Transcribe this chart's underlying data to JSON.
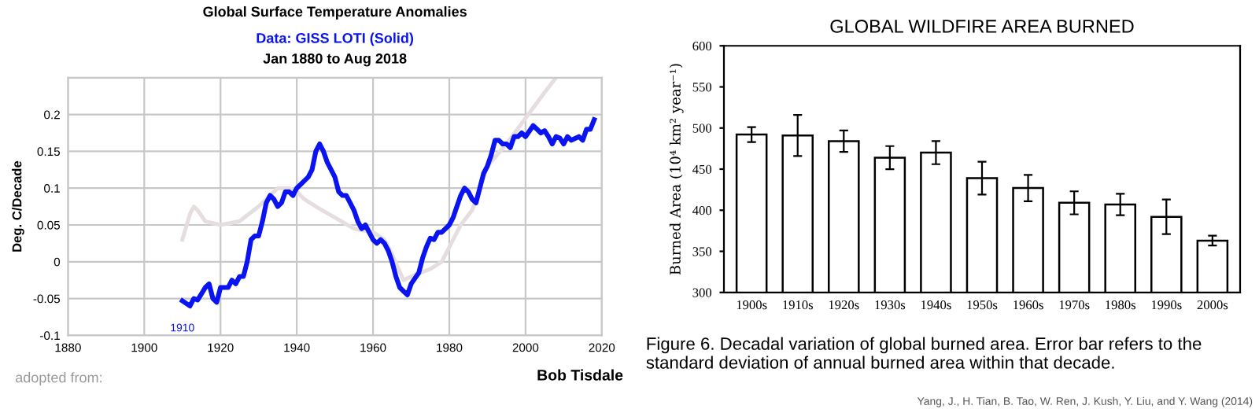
{
  "chart_data": [
    {
      "type": "line",
      "title": "Global Surface Temperature Anomalies",
      "subtitle": "Data: GISS LOTI (Solid)",
      "ylabel": "Deg. C/Decade",
      "annotations": [
        "Jan 1880 to Aug 2018",
        {
          "text": "1910",
          "x": 1910,
          "y": -0.053
        },
        "adopted from:",
        "Bob Tisdale"
      ],
      "xlim": [
        1880,
        2020
      ],
      "xticks": [
        1880,
        1900,
        1920,
        1940,
        1960,
        1980,
        2000,
        2020
      ],
      "ylim": [
        -0.1,
        0.25
      ],
      "yticks": [
        -0.1,
        -0.05,
        0,
        0.05,
        0.1,
        0.15,
        0.2,
        {
          "value": 0.25,
          "label": null
        }
      ],
      "grid": true,
      "legend": false,
      "marker": "none",
      "line_style": "solid",
      "series": [
        {
          "color": "#e6dede",
          "x": [
            1910,
            1912,
            1913,
            1914,
            1916,
            1920,
            1925,
            1930,
            1933,
            1935,
            1938,
            1940,
            1942,
            1945,
            1950,
            1955,
            1960,
            1963,
            1965,
            1968,
            1970,
            1975,
            1978,
            1980,
            1983,
            1986,
            1988,
            1990,
            1995,
            2000,
            2005,
            2008
          ],
          "values": [
            0.03,
            0.065,
            0.075,
            0.07,
            0.055,
            0.05,
            0.055,
            0.075,
            0.09,
            0.1,
            0.1,
            0.095,
            0.085,
            0.075,
            0.06,
            0.045,
            0.04,
            0.03,
            0.01,
            -0.025,
            -0.02,
            -0.01,
            0.0,
            0.02,
            0.05,
            0.07,
            0.1,
            0.13,
            0.16,
            0.195,
            0.23,
            0.25
          ]
        },
        {
          "color": "#0a14f0",
          "x": [
            1910,
            1912,
            1913,
            1914,
            1916,
            1917,
            1918,
            1919,
            1920,
            1922,
            1923,
            1924,
            1925,
            1926,
            1927,
            1928,
            1929,
            1930,
            1931,
            1932,
            1933,
            1934,
            1935,
            1936,
            1937,
            1938,
            1939,
            1940,
            1942,
            1943,
            1944,
            1945,
            1946,
            1947,
            1948,
            1950,
            1951,
            1952,
            1953,
            1954,
            1955,
            1956,
            1957,
            1958,
            1959,
            1960,
            1961,
            1962,
            1963,
            1964,
            1965,
            1966,
            1967,
            1968,
            1969,
            1970,
            1972,
            1973,
            1974,
            1975,
            1976,
            1977,
            1978,
            1979,
            1980,
            1981,
            1982,
            1983,
            1984,
            1985,
            1986,
            1987,
            1988,
            1989,
            1990,
            1991,
            1992,
            1993,
            1994,
            1995,
            1996,
            1997,
            1998,
            1999,
            2000,
            2002,
            2003,
            2004,
            2005,
            2006,
            2007,
            2008,
            2009,
            2010,
            2011,
            2012,
            2014,
            2015,
            2016,
            2017,
            2018
          ],
          "values": [
            -0.053,
            -0.06,
            -0.05,
            -0.052,
            -0.035,
            -0.03,
            -0.05,
            -0.055,
            -0.035,
            -0.035,
            -0.025,
            -0.03,
            -0.02,
            -0.02,
            0.0,
            0.03,
            0.035,
            0.035,
            0.055,
            0.08,
            0.09,
            0.085,
            0.075,
            0.08,
            0.095,
            0.095,
            0.09,
            0.1,
            0.11,
            0.115,
            0.125,
            0.15,
            0.16,
            0.15,
            0.135,
            0.115,
            0.095,
            0.09,
            0.09,
            0.08,
            0.07,
            0.055,
            0.045,
            0.05,
            0.04,
            0.03,
            0.025,
            0.03,
            0.025,
            0.015,
            0.0,
            -0.02,
            -0.035,
            -0.04,
            -0.045,
            -0.03,
            -0.015,
            0.005,
            0.02,
            0.032,
            0.03,
            0.04,
            0.04,
            0.045,
            0.05,
            0.06,
            0.075,
            0.09,
            0.1,
            0.095,
            0.085,
            0.08,
            0.1,
            0.12,
            0.13,
            0.145,
            0.165,
            0.165,
            0.16,
            0.16,
            0.155,
            0.17,
            0.17,
            0.175,
            0.17,
            0.185,
            0.18,
            0.175,
            0.178,
            0.17,
            0.16,
            0.17,
            0.168,
            0.16,
            0.17,
            0.165,
            0.17,
            0.165,
            0.18,
            0.18,
            0.193
          ]
        }
      ]
    },
    {
      "type": "bar",
      "title": "GLOBAL WILDFIRE AREA BURNED",
      "ylabel": "Burned Area (10⁴ km² year⁻¹)",
      "categories": [
        "1900s",
        "1910s",
        "1920s",
        "1930s",
        "1940s",
        "1950s",
        "1960s",
        "1970s",
        "1980s",
        "1990s",
        "2000s"
      ],
      "values": [
        492,
        491,
        484,
        464,
        470,
        439,
        427,
        409,
        407,
        392,
        363
      ],
      "errors": [
        9,
        25,
        13,
        14,
        14,
        20,
        16,
        14,
        13,
        21,
        6
      ],
      "color": "#ffffff",
      "ylim": [
        300,
        600
      ],
      "yticks": [
        300,
        350,
        400,
        450,
        500,
        550,
        600
      ],
      "grid": false,
      "legend": false,
      "annotations": [
        "Figure 6. Decadal variation of global burned area. Error bar refers to the standard deviation of annual burned area within that decade.",
        "Yang, J., H. Tian, B. Tao, W. Ren, J. Kush, Y. Liu, and Y. Wang (2014)"
      ]
    }
  ]
}
